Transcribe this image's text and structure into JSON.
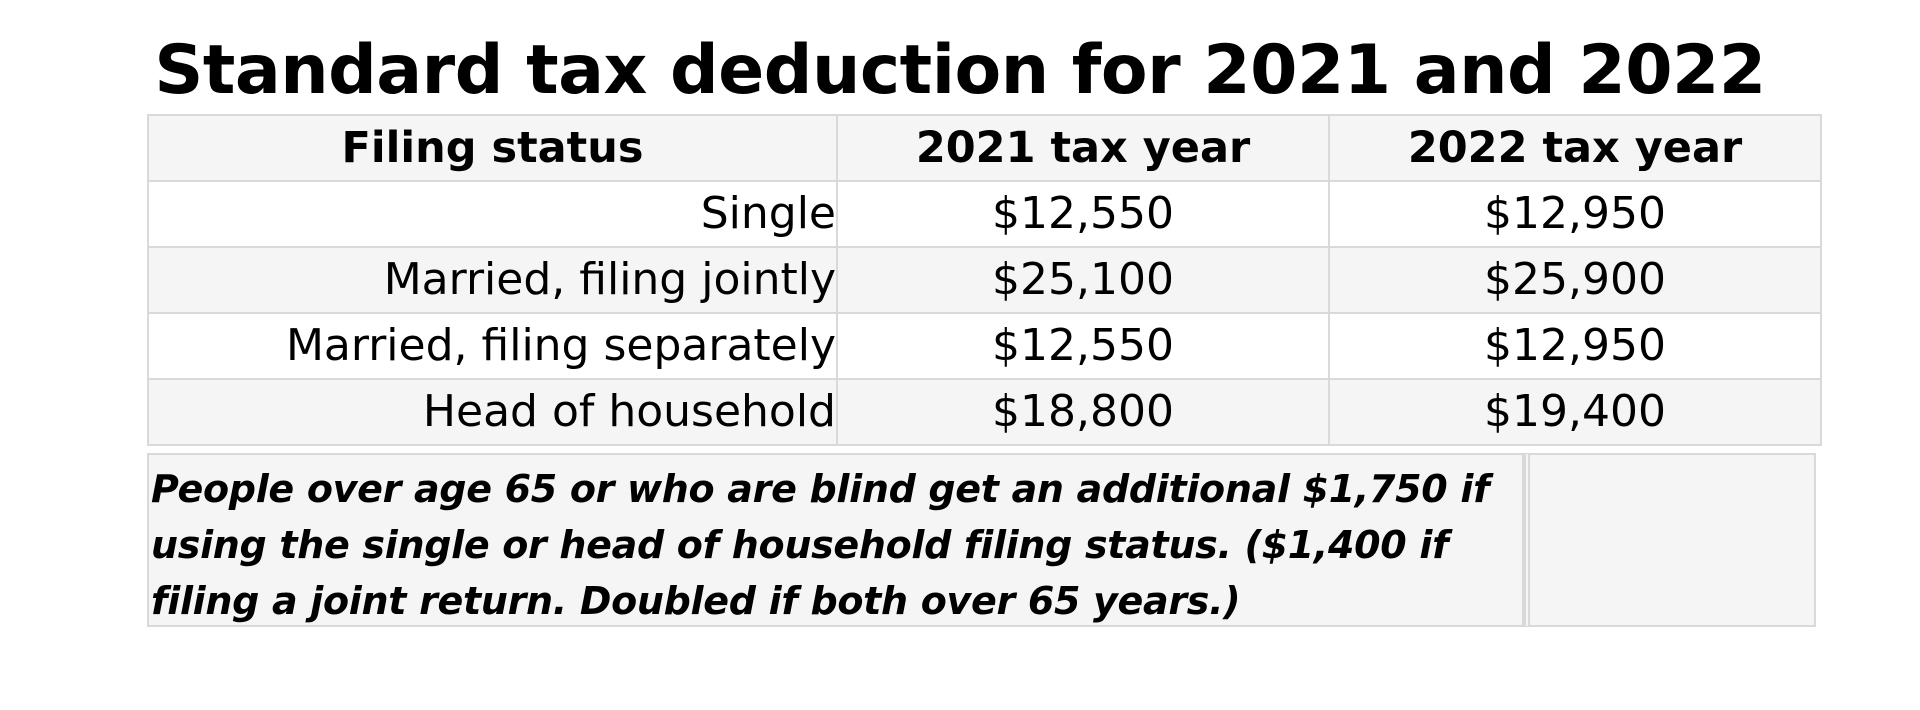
{
  "title": "Standard tax deduction for 2021 and 2022",
  "table": {
    "headers": [
      "Filing status",
      "2021 tax year",
      "2022 tax year"
    ],
    "rows": [
      {
        "status": "Single",
        "y2021": "$12,550",
        "y2022": "$12,950"
      },
      {
        "status": "Married, filing jointly",
        "y2021": "$25,100",
        "y2022": "$25,900"
      },
      {
        "status": "Married, filing separately",
        "y2021": "$12,550",
        "y2022": "$12,950"
      },
      {
        "status": "Head of household",
        "y2021": "$18,800",
        "y2022": "$19,400"
      }
    ]
  },
  "note": {
    "line1": "People over age 65 or who are blind get an additional $1,750 if",
    "line2": "using the single or head of household filing status.  ($1,400 if",
    "line3": "filing a joint return. Doubled if both over 65 years.)"
  },
  "colors": {
    "shaded_row": "#f5f5f5",
    "border": "#d9d9d9",
    "text": "#000000"
  }
}
